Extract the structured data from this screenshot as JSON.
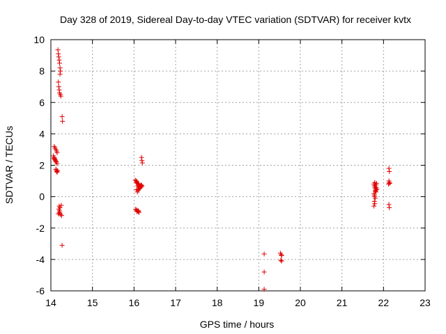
{
  "chart_data": {
    "type": "scatter",
    "title": "Day 328 of 2019, Sidereal Day-to-day VTEC variation (SDTVAR) for receiver kvtx",
    "xlabel": "GPS time / hours",
    "ylabel": "SDTVAR / TECUs",
    "xlim": [
      14,
      23
    ],
    "ylim": [
      -6,
      10
    ],
    "xticks": [
      14,
      15,
      16,
      17,
      18,
      19,
      20,
      21,
      22,
      23
    ],
    "yticks": [
      -6,
      -4,
      -2,
      0,
      2,
      4,
      6,
      8,
      10
    ],
    "grid": true,
    "marker": "+",
    "color": "#e00000",
    "series": [
      {
        "name": "SDTVAR",
        "points": [
          [
            14.08,
            3.2
          ],
          [
            14.1,
            3.1
          ],
          [
            14.12,
            3.0
          ],
          [
            14.14,
            2.9
          ],
          [
            14.15,
            2.8
          ],
          [
            14.06,
            2.6
          ],
          [
            14.08,
            2.5
          ],
          [
            14.09,
            2.4
          ],
          [
            14.1,
            2.35
          ],
          [
            14.11,
            2.3
          ],
          [
            14.13,
            2.2
          ],
          [
            14.15,
            2.1
          ],
          [
            14.08,
            2.45
          ],
          [
            14.12,
            2.25
          ],
          [
            14.12,
            1.75
          ],
          [
            14.13,
            1.7
          ],
          [
            14.14,
            1.6
          ],
          [
            14.15,
            1.55
          ],
          [
            14.16,
            1.65
          ],
          [
            14.17,
            9.35
          ],
          [
            14.18,
            9.1
          ],
          [
            14.19,
            8.9
          ],
          [
            14.2,
            8.7
          ],
          [
            14.21,
            8.5
          ],
          [
            14.22,
            8.2
          ],
          [
            14.23,
            8.0
          ],
          [
            14.22,
            7.8
          ],
          [
            14.18,
            7.3
          ],
          [
            14.19,
            7.0
          ],
          [
            14.2,
            6.8
          ],
          [
            14.21,
            6.6
          ],
          [
            14.23,
            6.5
          ],
          [
            14.24,
            6.4
          ],
          [
            14.27,
            5.1
          ],
          [
            14.28,
            4.8
          ],
          [
            14.2,
            -0.6
          ],
          [
            14.22,
            -0.7
          ],
          [
            14.19,
            -0.8
          ],
          [
            14.21,
            -0.9
          ],
          [
            14.2,
            -1.0
          ],
          [
            14.18,
            -1.1
          ],
          [
            14.23,
            -1.15
          ],
          [
            14.26,
            -1.2
          ],
          [
            14.25,
            -0.55
          ],
          [
            14.22,
            -1.05
          ],
          [
            14.27,
            -3.1
          ],
          [
            16.03,
            1.05
          ],
          [
            16.05,
            1.0
          ],
          [
            16.07,
            0.95
          ],
          [
            16.06,
            0.9
          ],
          [
            16.08,
            0.85
          ],
          [
            16.1,
            0.8
          ],
          [
            16.12,
            0.75
          ],
          [
            16.09,
            0.7
          ],
          [
            16.11,
            0.65
          ],
          [
            16.13,
            0.6
          ],
          [
            16.14,
            0.55
          ],
          [
            16.15,
            0.7
          ],
          [
            16.17,
            0.75
          ],
          [
            16.19,
            0.7
          ],
          [
            16.12,
            0.5
          ],
          [
            16.1,
            0.4
          ],
          [
            16.08,
            0.3
          ],
          [
            16.06,
            0.45
          ],
          [
            16.16,
            0.6
          ],
          [
            16.18,
            0.65
          ],
          [
            16.04,
            -0.8
          ],
          [
            16.06,
            -0.85
          ],
          [
            16.08,
            -0.9
          ],
          [
            16.1,
            -0.95
          ],
          [
            16.12,
            -1.0
          ],
          [
            16.07,
            -0.95
          ],
          [
            16.11,
            -0.9
          ],
          [
            16.18,
            2.5
          ],
          [
            16.19,
            2.3
          ],
          [
            16.2,
            2.15
          ],
          [
            19.13,
            -3.65
          ],
          [
            19.13,
            -4.8
          ],
          [
            19.13,
            -5.9
          ],
          [
            19.52,
            -3.6
          ],
          [
            19.54,
            -3.7
          ],
          [
            19.55,
            -3.75
          ],
          [
            19.53,
            -4.05
          ],
          [
            19.55,
            -4.1
          ],
          [
            21.77,
            0.8
          ],
          [
            21.78,
            0.7
          ],
          [
            21.79,
            0.6
          ],
          [
            21.8,
            0.5
          ],
          [
            21.81,
            0.4
          ],
          [
            21.82,
            0.3
          ],
          [
            21.77,
            0.2
          ],
          [
            21.78,
            0.1
          ],
          [
            21.79,
            0.0
          ],
          [
            21.8,
            -0.1
          ],
          [
            21.81,
            0.6
          ],
          [
            21.82,
            0.75
          ],
          [
            21.83,
            0.55
          ],
          [
            21.84,
            0.45
          ],
          [
            21.78,
            -0.3
          ],
          [
            21.79,
            -0.45
          ],
          [
            21.77,
            -0.6
          ],
          [
            21.8,
            0.35
          ],
          [
            21.83,
            0.85
          ],
          [
            21.79,
            0.9
          ],
          [
            22.13,
            1.8
          ],
          [
            22.14,
            1.6
          ],
          [
            22.13,
            1.0
          ],
          [
            22.14,
            0.9
          ],
          [
            22.15,
            0.85
          ],
          [
            22.12,
            0.8
          ],
          [
            22.13,
            -0.5
          ],
          [
            22.14,
            -0.7
          ]
        ]
      }
    ]
  }
}
